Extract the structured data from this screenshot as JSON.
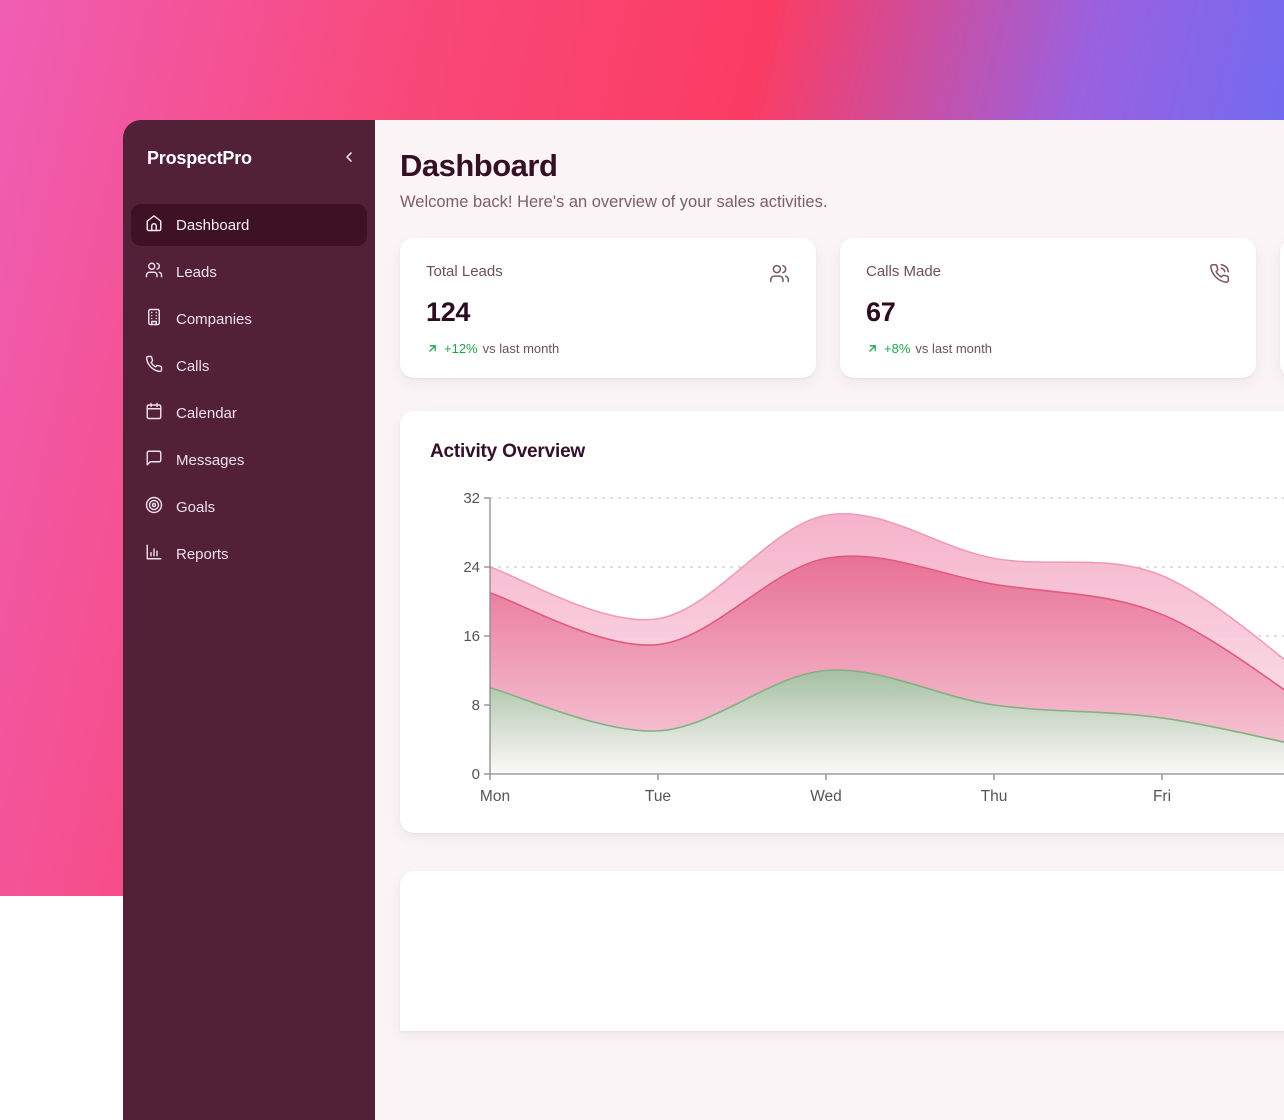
{
  "app": {
    "brand": "ProspectPro"
  },
  "sidebar": {
    "items": [
      {
        "label": "Dashboard",
        "icon": "home-icon",
        "active": true
      },
      {
        "label": "Leads",
        "icon": "users-icon",
        "active": false
      },
      {
        "label": "Companies",
        "icon": "building-icon",
        "active": false
      },
      {
        "label": "Calls",
        "icon": "phone-icon",
        "active": false
      },
      {
        "label": "Calendar",
        "icon": "calendar-icon",
        "active": false
      },
      {
        "label": "Messages",
        "icon": "message-square-icon",
        "active": false
      },
      {
        "label": "Goals",
        "icon": "target-icon",
        "active": false
      },
      {
        "label": "Reports",
        "icon": "bar-chart-icon",
        "active": false
      }
    ]
  },
  "header": {
    "title": "Dashboard",
    "subtitle": "Welcome back! Here's an overview of your sales activities."
  },
  "stats": [
    {
      "label": "Total Leads",
      "value": "124",
      "trend": "+12%",
      "trend_suffix": "vs last month",
      "icon": "users-icon"
    },
    {
      "label": "Calls Made",
      "value": "67",
      "trend": "+8%",
      "trend_suffix": "vs last month",
      "icon": "phone-call-icon"
    }
  ],
  "chart_data": {
    "type": "area",
    "title": "Activity Overview",
    "categories": [
      "Mon",
      "Tue",
      "Wed",
      "Thu",
      "Fri"
    ],
    "y_ticks": [
      0,
      8,
      16,
      24,
      32
    ],
    "ylim": [
      0,
      32
    ],
    "grid": "dotted-horizontal",
    "legend": "none",
    "note": "Three layered gradient area bands; curves continue past the right viewport edge. 'offscreen_next' is the estimated continuation value one day beyond Fri.",
    "series": [
      {
        "name": "outer-pink-band",
        "stroke": "#ef9cba",
        "fill_top": "#f5aec7",
        "fill_bottom": "#fbe6ee",
        "values": [
          24,
          18,
          30,
          25,
          23
        ],
        "offscreen_next": 9
      },
      {
        "name": "inner-pink-band",
        "stroke": "#e25a82",
        "fill_top": "#e76d93",
        "fill_bottom": "#f7ccd9",
        "values": [
          21,
          15,
          25,
          22,
          18.5
        ],
        "offscreen_next": 6
      },
      {
        "name": "green-band",
        "stroke": "#83b183",
        "fill_top": "#a0c1a0",
        "fill_bottom": "#fdfdfb",
        "values": [
          10,
          5,
          12,
          8,
          6.5
        ],
        "offscreen_next": 2.5
      }
    ],
    "axis_color": "#8a8a8a",
    "tick_label_color": "#555555",
    "gridline_color": "#cfc9cb"
  },
  "colors": {
    "trend_green": "#22a34a",
    "sidebar_bg": "#522137",
    "sidebar_active_bg": "#3e1124",
    "main_bg": "#faf4f6",
    "heading": "#351022",
    "gradient_left": "#ef5eb4",
    "gradient_mid": "#fa3c63",
    "gradient_right": "#6d6cf2"
  }
}
